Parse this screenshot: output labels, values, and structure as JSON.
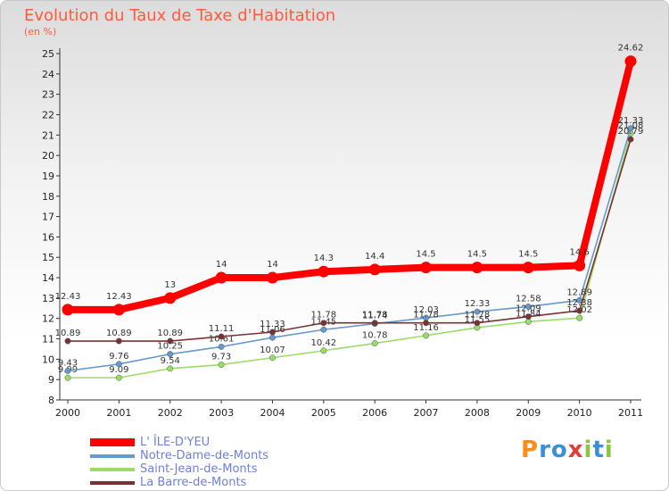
{
  "title": "Evolution du Taux de Taxe d'Habitation",
  "unit_label": "(en %)",
  "logo": {
    "text": "Proxiti",
    "letters": [
      "P",
      "r",
      "o",
      "x",
      "i",
      "t",
      "i"
    ],
    "colors": [
      "#ff8c1a",
      "#3a8fd6",
      "#3a8fd6",
      "#e23b3b",
      "#8cc63f",
      "#3a8fd6",
      "#8cc63f"
    ]
  },
  "chart_data": {
    "type": "line",
    "title": "Evolution du Taux de Taxe d'Habitation",
    "ylabel": "(en %)",
    "xlabel": "",
    "x": [
      "2000",
      "2001",
      "2002",
      "2003",
      "2004",
      "2005",
      "2006",
      "2007",
      "2008",
      "2009",
      "2010",
      "2011"
    ],
    "ylim": [
      8,
      25
    ],
    "yticks": [
      "8",
      "9",
      "10",
      "11",
      "12",
      "13",
      "14",
      "15",
      "16",
      "17",
      "18",
      "19",
      "20",
      "21",
      "22",
      "23",
      "24",
      "25"
    ],
    "grid": false,
    "legend_position": "bottom-left",
    "series": [
      {
        "name": "L' ÎLE-D'YEU",
        "color": "#ff0000",
        "values": [
          12.43,
          12.43,
          13,
          14,
          14,
          14.3,
          14.4,
          14.5,
          14.5,
          14.5,
          14.6,
          24.62
        ],
        "labels": [
          "12.43",
          "12.43",
          "13",
          "14",
          "14",
          "14.3",
          "14.4",
          "14.5",
          "14.5",
          "14.5",
          "14.6",
          "24.62"
        ]
      },
      {
        "name": "Notre-Dame-de-Monts",
        "color": "#6699cc",
        "values": [
          9.43,
          9.76,
          10.25,
          10.61,
          11.06,
          11.45,
          11.74,
          12.03,
          12.33,
          12.58,
          12.89,
          21.33
        ],
        "labels": [
          "9.43",
          "9.76",
          "10.25",
          "10.61",
          "11.06",
          "11.45",
          "11.74",
          "12.03",
          "12.33",
          "12.58",
          "12.89",
          "21.33"
        ]
      },
      {
        "name": "Saint-Jean-de-Monts",
        "color": "#99dd66",
        "values": [
          9.09,
          9.09,
          9.54,
          9.73,
          10.07,
          10.42,
          10.78,
          11.16,
          11.55,
          11.84,
          12.02,
          21.08
        ],
        "labels": [
          "9.09",
          "9.09",
          "9.54",
          "9.73",
          "10.07",
          "10.42",
          "10.78",
          "11.16",
          "11.55",
          "11.84",
          "12.02",
          "21.08"
        ]
      },
      {
        "name": "La Barre-de-Monts",
        "color": "#773333",
        "values": [
          10.89,
          10.89,
          10.89,
          11.11,
          11.33,
          11.78,
          11.78,
          11.78,
          11.78,
          12.09,
          12.38,
          20.79
        ],
        "labels": [
          "10.89",
          "10.89",
          "10.89",
          "11.11",
          "11.33",
          "11.78",
          "11.78",
          "11.78",
          "11.78",
          "12.09",
          "12.38",
          "20.79"
        ]
      }
    ]
  }
}
